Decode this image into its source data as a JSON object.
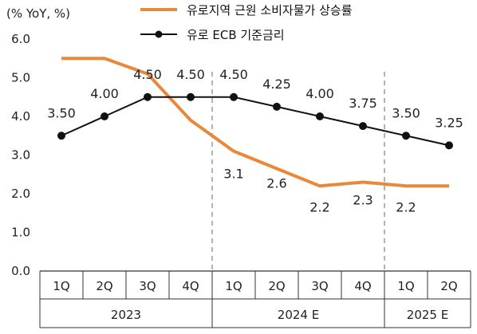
{
  "chart_data": {
    "type": "line",
    "unit_label": "(% YoY, %)",
    "categories": [
      "1Q",
      "2Q",
      "3Q",
      "4Q",
      "1Q",
      "2Q",
      "3Q",
      "4Q",
      "1Q",
      "2Q"
    ],
    "groups": [
      {
        "label": "2023",
        "start": 0,
        "end": 3
      },
      {
        "label": "2024 E",
        "start": 4,
        "end": 7
      },
      {
        "label": "2025 E",
        "start": 8,
        "end": 9
      }
    ],
    "ylim": [
      0,
      6
    ],
    "yticks": [
      "0.0",
      "1.0",
      "2.0",
      "3.0",
      "4.0",
      "5.0",
      "6.0"
    ],
    "series": [
      {
        "name": "유로지역 근원 소비자물가 상승률",
        "color": "#E8883A",
        "values": [
          5.5,
          5.5,
          5.1,
          3.9,
          3.1,
          2.65,
          2.2,
          2.3,
          2.2,
          2.2
        ],
        "labels": [
          "",
          "",
          "",
          "",
          "3.1",
          "2.6",
          "2.2",
          "2.3",
          "2.2",
          ""
        ]
      },
      {
        "name": "유로 ECB 기준금리",
        "color": "#111111",
        "values": [
          3.5,
          4.0,
          4.5,
          4.5,
          4.5,
          4.25,
          4.0,
          3.75,
          3.5,
          3.25
        ],
        "labels": [
          "3.50",
          "4.00",
          "4.50",
          "4.50",
          "4.50",
          "4.25",
          "4.00",
          "3.75",
          "3.50",
          "3.25"
        ]
      }
    ],
    "legend_position": "top-right",
    "grid": false
  }
}
